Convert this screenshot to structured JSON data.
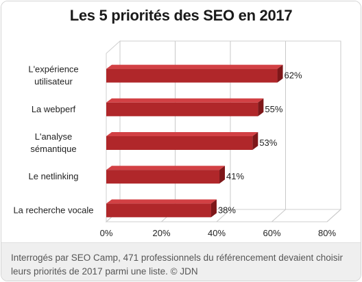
{
  "chart_data": {
    "type": "bar",
    "orientation": "horizontal",
    "title": "Les 5 priorités des SEO en 2017",
    "categories": [
      [
        "L'expérience",
        "utilisateur"
      ],
      [
        "La webperf"
      ],
      [
        "L'analyse",
        "sémantique"
      ],
      [
        "Le netlinking"
      ],
      [
        "La recherche vocale"
      ]
    ],
    "values": [
      62,
      55,
      53,
      41,
      38
    ],
    "value_labels": [
      "62%",
      "55%",
      "53%",
      "41%",
      "38%"
    ],
    "xlim": [
      0,
      80
    ],
    "xticks": [
      0,
      20,
      40,
      60,
      80
    ],
    "xtick_labels": [
      "0%",
      "20%",
      "40%",
      "60%",
      "80%"
    ],
    "grid": true,
    "bar_color": "#b0272a",
    "bar_top_color": "#d24044",
    "bar_side_color": "#7e1719"
  },
  "caption": "Interrogés par SEO Camp, 471 professionnels du référencement devaient choisir leurs priorités de 2017 parmi une liste. © JDN"
}
